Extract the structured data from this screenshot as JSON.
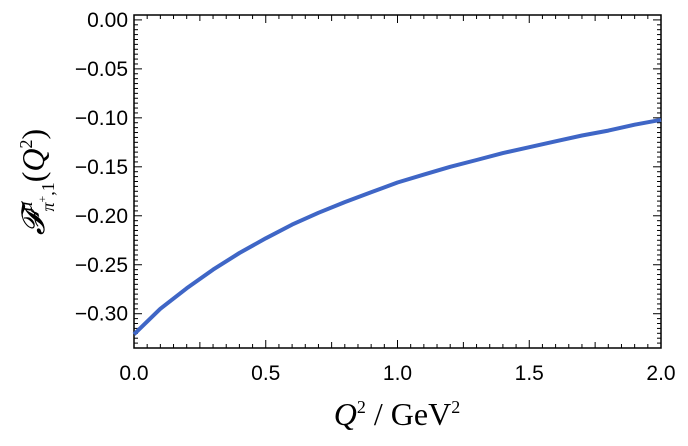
{
  "chart_data": {
    "type": "line",
    "title": "",
    "xlabel": "Q² / GeV²",
    "ylabel": "𝓕ᵘπ⁺,₁(Q²)",
    "xlim": [
      0.0,
      2.0
    ],
    "ylim": [
      -0.335,
      0.005
    ],
    "x_ticks": [
      "0.0",
      "0.5",
      "1.0",
      "1.5",
      "2.0"
    ],
    "y_ticks": [
      "0.00",
      "−0.05",
      "−0.10",
      "−0.15",
      "−0.20",
      "−0.25",
      "−0.30"
    ],
    "grid": false,
    "series": [
      {
        "color": "#3F66C6",
        "x": [
          0.0,
          0.1,
          0.2,
          0.3,
          0.4,
          0.5,
          0.6,
          0.7,
          0.8,
          0.9,
          1.0,
          1.1,
          1.2,
          1.3,
          1.4,
          1.5,
          1.6,
          1.7,
          1.8,
          1.9,
          2.0
        ],
        "y": [
          -0.321,
          -0.295,
          -0.274,
          -0.255,
          -0.238,
          -0.223,
          -0.209,
          -0.197,
          -0.186,
          -0.176,
          -0.166,
          -0.158,
          -0.15,
          -0.143,
          -0.136,
          -0.13,
          -0.124,
          -0.118,
          -0.113,
          -0.107,
          -0.102
        ]
      }
    ]
  }
}
